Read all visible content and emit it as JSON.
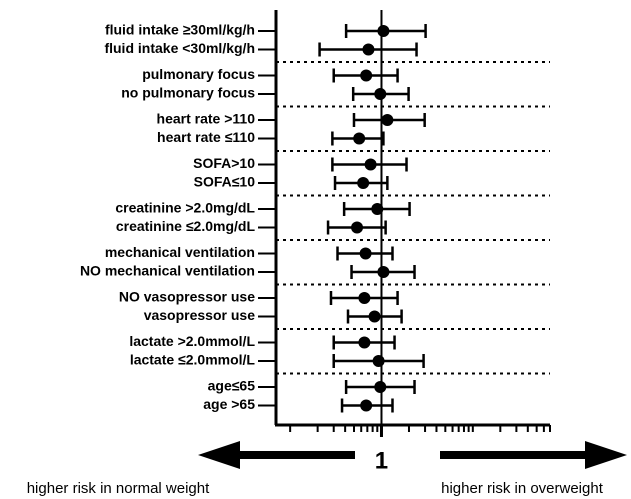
{
  "chart_data": {
    "type": "forest",
    "categories": [
      "fluid intake ≥30ml/kg/h",
      "fluid intake <30ml/kg/h",
      "pulmonary focus",
      "no pulmonary focus",
      "heart rate >110",
      "heart rate ≤110",
      "SOFA>10",
      "SOFA≤10",
      "creatinine >2.0mg/dL",
      "creatinine ≤2.0mg/dL",
      "mechanical ventilation",
      "NO mechanical ventilation",
      "NO vasopressor use",
      "vasopressor use",
      "lactate >2.0mmol/L",
      "lactate ≤2.0mmol/L",
      "age≤65",
      "age >65"
    ],
    "values": [
      1.05,
      0.72,
      0.68,
      0.97,
      1.16,
      0.57,
      0.76,
      0.63,
      0.9,
      0.54,
      0.67,
      1.05,
      0.65,
      0.84,
      0.65,
      0.93,
      0.97,
      0.68
    ],
    "ci_lower": [
      0.41,
      0.21,
      0.3,
      0.49,
      0.5,
      0.29,
      0.29,
      0.31,
      0.39,
      0.26,
      0.33,
      0.47,
      0.28,
      0.43,
      0.3,
      0.3,
      0.41,
      0.37
    ],
    "ci_upper": [
      3.04,
      2.42,
      1.5,
      1.98,
      2.97,
      1.05,
      1.88,
      1.16,
      2.03,
      1.11,
      1.32,
      2.3,
      1.5,
      1.66,
      1.39,
      2.89,
      2.3,
      1.32
    ],
    "color": "#000000",
    "xscale": "log",
    "xlim": [
      0.07,
      70
    ],
    "xticks": [
      1
    ],
    "minor_xticks": [
      0.1,
      0.2,
      0.3,
      0.4,
      0.5,
      0.6,
      0.7,
      0.8,
      0.9,
      2,
      3,
      4,
      5,
      6,
      7,
      8,
      9,
      10,
      20,
      30,
      40,
      50,
      60,
      70
    ],
    "annotations": [
      "higher risk in normal weight",
      "higher risk in overweight"
    ]
  }
}
